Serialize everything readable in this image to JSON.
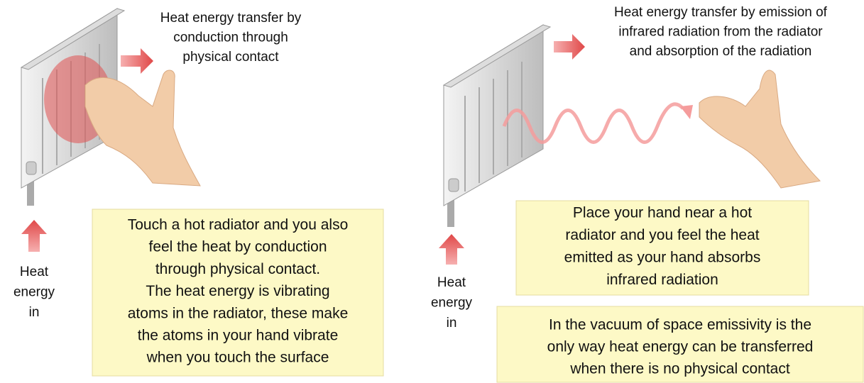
{
  "left": {
    "caption": [
      "Heat energy transfer by",
      "conduction through",
      "physical contact"
    ],
    "heat_in": [
      "Heat",
      "energy",
      "in"
    ],
    "box": [
      "Touch a hot radiator and you also",
      "feel the heat by conduction",
      "through physical contact.",
      "The heat energy is vibrating",
      "atoms in the radiator, these make",
      "the atoms in your hand vibrate",
      "when you touch the surface"
    ]
  },
  "right": {
    "caption": [
      "Heat energy transfer by emission of",
      "infrared radiation from the radiator",
      "and absorption of the radiation"
    ],
    "heat_in": [
      "Heat",
      "energy",
      "in"
    ],
    "box": [
      "Place your hand near a hot",
      "radiator and you feel the heat",
      "emitted as your hand absorbs",
      "infrared radiation"
    ],
    "note": [
      "In the vacuum of space emissivity is the",
      "only way heat energy can be transferred",
      "when there is no physical contact"
    ]
  }
}
